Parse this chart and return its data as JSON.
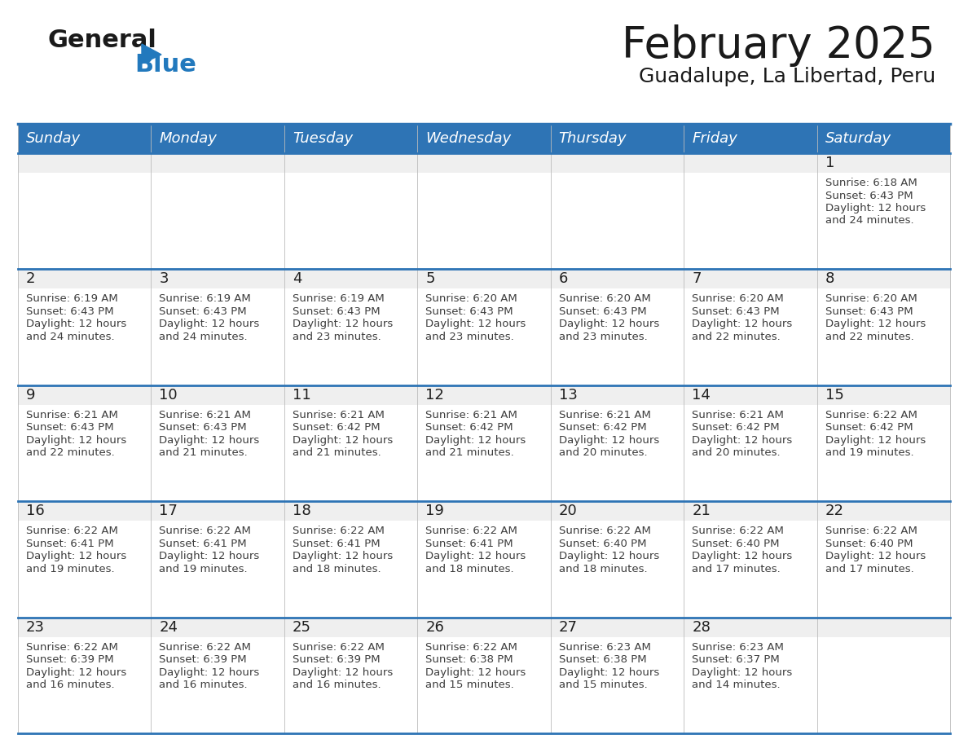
{
  "title": "February 2025",
  "subtitle": "Guadalupe, La Libertad, Peru",
  "days_of_week": [
    "Sunday",
    "Monday",
    "Tuesday",
    "Wednesday",
    "Thursday",
    "Friday",
    "Saturday"
  ],
  "header_bg": "#2E74B5",
  "header_text": "#FFFFFF",
  "cell_top_bg": "#EFEFEF",
  "cell_body_bg": "#FFFFFF",
  "border_color": "#2E74B5",
  "day_num_color": "#1F1F1F",
  "text_color": "#3D3D3D",
  "calendar_data": [
    [
      null,
      null,
      null,
      null,
      null,
      null,
      {
        "day": 1,
        "sunrise": "6:18 AM",
        "sunset": "6:43 PM",
        "daylight_line1": "Daylight: 12 hours",
        "daylight_line2": "and 24 minutes."
      }
    ],
    [
      {
        "day": 2,
        "sunrise": "6:19 AM",
        "sunset": "6:43 PM",
        "daylight_line1": "Daylight: 12 hours",
        "daylight_line2": "and 24 minutes."
      },
      {
        "day": 3,
        "sunrise": "6:19 AM",
        "sunset": "6:43 PM",
        "daylight_line1": "Daylight: 12 hours",
        "daylight_line2": "and 24 minutes."
      },
      {
        "day": 4,
        "sunrise": "6:19 AM",
        "sunset": "6:43 PM",
        "daylight_line1": "Daylight: 12 hours",
        "daylight_line2": "and 23 minutes."
      },
      {
        "day": 5,
        "sunrise": "6:20 AM",
        "sunset": "6:43 PM",
        "daylight_line1": "Daylight: 12 hours",
        "daylight_line2": "and 23 minutes."
      },
      {
        "day": 6,
        "sunrise": "6:20 AM",
        "sunset": "6:43 PM",
        "daylight_line1": "Daylight: 12 hours",
        "daylight_line2": "and 23 minutes."
      },
      {
        "day": 7,
        "sunrise": "6:20 AM",
        "sunset": "6:43 PM",
        "daylight_line1": "Daylight: 12 hours",
        "daylight_line2": "and 22 minutes."
      },
      {
        "day": 8,
        "sunrise": "6:20 AM",
        "sunset": "6:43 PM",
        "daylight_line1": "Daylight: 12 hours",
        "daylight_line2": "and 22 minutes."
      }
    ],
    [
      {
        "day": 9,
        "sunrise": "6:21 AM",
        "sunset": "6:43 PM",
        "daylight_line1": "Daylight: 12 hours",
        "daylight_line2": "and 22 minutes."
      },
      {
        "day": 10,
        "sunrise": "6:21 AM",
        "sunset": "6:43 PM",
        "daylight_line1": "Daylight: 12 hours",
        "daylight_line2": "and 21 minutes."
      },
      {
        "day": 11,
        "sunrise": "6:21 AM",
        "sunset": "6:42 PM",
        "daylight_line1": "Daylight: 12 hours",
        "daylight_line2": "and 21 minutes."
      },
      {
        "day": 12,
        "sunrise": "6:21 AM",
        "sunset": "6:42 PM",
        "daylight_line1": "Daylight: 12 hours",
        "daylight_line2": "and 21 minutes."
      },
      {
        "day": 13,
        "sunrise": "6:21 AM",
        "sunset": "6:42 PM",
        "daylight_line1": "Daylight: 12 hours",
        "daylight_line2": "and 20 minutes."
      },
      {
        "day": 14,
        "sunrise": "6:21 AM",
        "sunset": "6:42 PM",
        "daylight_line1": "Daylight: 12 hours",
        "daylight_line2": "and 20 minutes."
      },
      {
        "day": 15,
        "sunrise": "6:22 AM",
        "sunset": "6:42 PM",
        "daylight_line1": "Daylight: 12 hours",
        "daylight_line2": "and 19 minutes."
      }
    ],
    [
      {
        "day": 16,
        "sunrise": "6:22 AM",
        "sunset": "6:41 PM",
        "daylight_line1": "Daylight: 12 hours",
        "daylight_line2": "and 19 minutes."
      },
      {
        "day": 17,
        "sunrise": "6:22 AM",
        "sunset": "6:41 PM",
        "daylight_line1": "Daylight: 12 hours",
        "daylight_line2": "and 19 minutes."
      },
      {
        "day": 18,
        "sunrise": "6:22 AM",
        "sunset": "6:41 PM",
        "daylight_line1": "Daylight: 12 hours",
        "daylight_line2": "and 18 minutes."
      },
      {
        "day": 19,
        "sunrise": "6:22 AM",
        "sunset": "6:41 PM",
        "daylight_line1": "Daylight: 12 hours",
        "daylight_line2": "and 18 minutes."
      },
      {
        "day": 20,
        "sunrise": "6:22 AM",
        "sunset": "6:40 PM",
        "daylight_line1": "Daylight: 12 hours",
        "daylight_line2": "and 18 minutes."
      },
      {
        "day": 21,
        "sunrise": "6:22 AM",
        "sunset": "6:40 PM",
        "daylight_line1": "Daylight: 12 hours",
        "daylight_line2": "and 17 minutes."
      },
      {
        "day": 22,
        "sunrise": "6:22 AM",
        "sunset": "6:40 PM",
        "daylight_line1": "Daylight: 12 hours",
        "daylight_line2": "and 17 minutes."
      }
    ],
    [
      {
        "day": 23,
        "sunrise": "6:22 AM",
        "sunset": "6:39 PM",
        "daylight_line1": "Daylight: 12 hours",
        "daylight_line2": "and 16 minutes."
      },
      {
        "day": 24,
        "sunrise": "6:22 AM",
        "sunset": "6:39 PM",
        "daylight_line1": "Daylight: 12 hours",
        "daylight_line2": "and 16 minutes."
      },
      {
        "day": 25,
        "sunrise": "6:22 AM",
        "sunset": "6:39 PM",
        "daylight_line1": "Daylight: 12 hours",
        "daylight_line2": "and 16 minutes."
      },
      {
        "day": 26,
        "sunrise": "6:22 AM",
        "sunset": "6:38 PM",
        "daylight_line1": "Daylight: 12 hours",
        "daylight_line2": "and 15 minutes."
      },
      {
        "day": 27,
        "sunrise": "6:23 AM",
        "sunset": "6:38 PM",
        "daylight_line1": "Daylight: 12 hours",
        "daylight_line2": "and 15 minutes."
      },
      {
        "day": 28,
        "sunrise": "6:23 AM",
        "sunset": "6:37 PM",
        "daylight_line1": "Daylight: 12 hours",
        "daylight_line2": "and 14 minutes."
      },
      null
    ]
  ],
  "n_rows": 5,
  "n_cols": 7,
  "logo_general_color": "#1A1A1A",
  "logo_blue_color": "#2279BD",
  "logo_triangle_color": "#2279BD",
  "title_fontsize": 38,
  "subtitle_fontsize": 18,
  "header_fontsize": 13,
  "day_num_fontsize": 13,
  "cell_text_fontsize": 9.5
}
